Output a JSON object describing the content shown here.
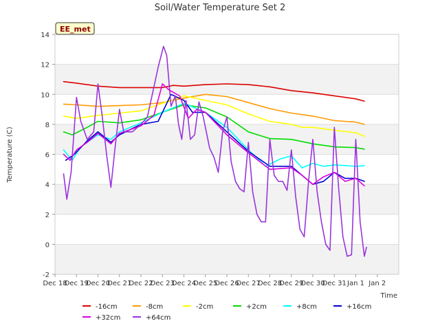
{
  "chart_data": {
    "type": "line",
    "title": "Soil/Water Temperature Set 2",
    "xlabel": "Time",
    "ylabel": "Temperature (C)",
    "badge": "EE_met",
    "xlim": [
      0,
      16
    ],
    "ylim": [
      -2,
      14
    ],
    "yticks": [
      -2,
      0,
      2,
      4,
      6,
      8,
      10,
      12,
      14
    ],
    "xticks": [
      {
        "pos": 0,
        "label": "Dec 18"
      },
      {
        "pos": 1,
        "label": "Dec 19"
      },
      {
        "pos": 2,
        "label": "Dec 20"
      },
      {
        "pos": 3,
        "label": "Dec 21"
      },
      {
        "pos": 4,
        "label": "Dec 22"
      },
      {
        "pos": 5,
        "label": "Dec 23"
      },
      {
        "pos": 6,
        "label": "Dec 24"
      },
      {
        "pos": 7,
        "label": "Dec 25"
      },
      {
        "pos": 8,
        "label": "Dec 26"
      },
      {
        "pos": 9,
        "label": "Dec 27"
      },
      {
        "pos": 10,
        "label": "Dec 28"
      },
      {
        "pos": 11,
        "label": "Dec 29"
      },
      {
        "pos": 12,
        "label": "Dec 30"
      },
      {
        "pos": 13,
        "label": "Dec 31"
      },
      {
        "pos": 14,
        "label": "Jan 1"
      },
      {
        "pos": 15,
        "label": "Jan 2"
      }
    ],
    "grid": true,
    "legend_position": "bottom",
    "series": [
      {
        "name": "-16cm",
        "color": "#dd0000",
        "points": [
          [
            0.4,
            10.85
          ],
          [
            1,
            10.75
          ],
          [
            2,
            10.55
          ],
          [
            3,
            10.45
          ],
          [
            4,
            10.45
          ],
          [
            5,
            10.45
          ],
          [
            5.5,
            10.6
          ],
          [
            6,
            10.55
          ],
          [
            7,
            10.65
          ],
          [
            8,
            10.7
          ],
          [
            9,
            10.65
          ],
          [
            10,
            10.5
          ],
          [
            11,
            10.25
          ],
          [
            12,
            10.1
          ],
          [
            13,
            9.9
          ],
          [
            14,
            9.7
          ],
          [
            14.4,
            9.55
          ]
        ]
      },
      {
        "name": "-8cm",
        "color": "#ff9900",
        "points": [
          [
            0.4,
            9.35
          ],
          [
            1,
            9.3
          ],
          [
            2,
            9.2
          ],
          [
            3,
            9.25
          ],
          [
            4,
            9.3
          ],
          [
            5,
            9.45
          ],
          [
            6,
            9.75
          ],
          [
            7,
            10.0
          ],
          [
            8,
            9.85
          ],
          [
            9,
            9.45
          ],
          [
            10,
            9.05
          ],
          [
            11,
            8.75
          ],
          [
            12,
            8.55
          ],
          [
            13,
            8.25
          ],
          [
            14,
            8.15
          ],
          [
            14.4,
            8.0
          ]
        ]
      },
      {
        "name": "-2cm",
        "color": "#ffff00",
        "points": [
          [
            0.4,
            8.55
          ],
          [
            1,
            8.4
          ],
          [
            2,
            8.6
          ],
          [
            3,
            8.75
          ],
          [
            4,
            8.9
          ],
          [
            5,
            9.4
          ],
          [
            6,
            9.9
          ],
          [
            7,
            9.6
          ],
          [
            8,
            9.3
          ],
          [
            9,
            8.7
          ],
          [
            10,
            8.2
          ],
          [
            11,
            8.0
          ],
          [
            11.5,
            7.8
          ],
          [
            12,
            7.8
          ],
          [
            13,
            7.6
          ],
          [
            14,
            7.45
          ],
          [
            14.4,
            7.2
          ]
        ]
      },
      {
        "name": "+2cm",
        "color": "#00dd00",
        "points": [
          [
            0.4,
            7.5
          ],
          [
            0.8,
            7.3
          ],
          [
            1.5,
            7.8
          ],
          [
            2,
            8.2
          ],
          [
            3,
            8.1
          ],
          [
            4,
            8.3
          ],
          [
            5,
            8.8
          ],
          [
            6,
            9.3
          ],
          [
            7,
            9.1
          ],
          [
            8,
            8.5
          ],
          [
            9,
            7.5
          ],
          [
            10,
            7.05
          ],
          [
            11,
            7.0
          ],
          [
            12,
            6.7
          ],
          [
            13,
            6.5
          ],
          [
            14,
            6.45
          ],
          [
            14.4,
            6.35
          ]
        ]
      },
      {
        "name": "+8cm",
        "color": "#00ffff",
        "points": [
          [
            0.4,
            6.3
          ],
          [
            0.8,
            5.6
          ],
          [
            1.2,
            6.5
          ],
          [
            2,
            7.3
          ],
          [
            2.6,
            7.0
          ],
          [
            3,
            7.5
          ],
          [
            4,
            8.1
          ],
          [
            5,
            8.8
          ],
          [
            6,
            9.4
          ],
          [
            7,
            8.8
          ],
          [
            8,
            7.8
          ],
          [
            9,
            6.3
          ],
          [
            9.8,
            5.2
          ],
          [
            10.5,
            5.7
          ],
          [
            11,
            5.9
          ],
          [
            11.5,
            5.1
          ],
          [
            12,
            5.4
          ],
          [
            12.5,
            5.2
          ],
          [
            13,
            5.3
          ],
          [
            14,
            5.2
          ],
          [
            14.4,
            5.25
          ]
        ]
      },
      {
        "name": "+16cm",
        "color": "#0000cc",
        "points": [
          [
            0.5,
            5.6
          ],
          [
            0.9,
            6.0
          ],
          [
            1.5,
            6.9
          ],
          [
            2,
            7.5
          ],
          [
            2.6,
            6.8
          ],
          [
            3,
            7.3
          ],
          [
            4,
            8.0
          ],
          [
            4.8,
            8.2
          ],
          [
            5.4,
            10.0
          ],
          [
            6,
            9.6
          ],
          [
            6.4,
            8.8
          ],
          [
            7,
            8.8
          ],
          [
            8,
            7.5
          ],
          [
            9,
            6.2
          ],
          [
            10,
            5.2
          ],
          [
            11,
            5.2
          ],
          [
            12,
            4.0
          ],
          [
            12.5,
            4.2
          ],
          [
            13,
            4.8
          ],
          [
            13.5,
            4.4
          ],
          [
            14,
            4.4
          ],
          [
            14.4,
            4.2
          ]
        ]
      },
      {
        "name": "+32cm",
        "color": "#dd00dd",
        "points": [
          [
            0.4,
            6.0
          ],
          [
            0.7,
            5.6
          ],
          [
            1,
            6.3
          ],
          [
            1.5,
            6.8
          ],
          [
            2,
            7.4
          ],
          [
            2.6,
            6.7
          ],
          [
            3,
            7.4
          ],
          [
            4,
            7.9
          ],
          [
            4.6,
            8.6
          ],
          [
            5,
            10.7
          ],
          [
            5.3,
            10.3
          ],
          [
            5.8,
            9.9
          ],
          [
            6.2,
            8.4
          ],
          [
            6.6,
            9.0
          ],
          [
            7,
            8.8
          ],
          [
            8,
            7.3
          ],
          [
            9,
            6.1
          ],
          [
            10,
            5.0
          ],
          [
            11,
            5.1
          ],
          [
            11.5,
            4.6
          ],
          [
            12,
            4.0
          ],
          [
            12.5,
            4.5
          ],
          [
            13,
            4.8
          ],
          [
            13.5,
            4.2
          ],
          [
            14,
            4.4
          ],
          [
            14.4,
            3.9
          ]
        ]
      },
      {
        "name": "+64cm",
        "color": "#9933dd",
        "points": [
          [
            0.4,
            4.7
          ],
          [
            0.55,
            3.0
          ],
          [
            0.75,
            4.8
          ],
          [
            1,
            9.8
          ],
          [
            1.2,
            8.2
          ],
          [
            1.5,
            7.0
          ],
          [
            1.8,
            7.5
          ],
          [
            2,
            10.7
          ],
          [
            2.2,
            8.5
          ],
          [
            2.4,
            6.0
          ],
          [
            2.6,
            3.8
          ],
          [
            2.8,
            6.5
          ],
          [
            3,
            9.0
          ],
          [
            3.2,
            7.5
          ],
          [
            3.6,
            7.5
          ],
          [
            4,
            8.0
          ],
          [
            4.3,
            8.5
          ],
          [
            4.5,
            9.8
          ],
          [
            4.8,
            11.8
          ],
          [
            5.05,
            13.2
          ],
          [
            5.2,
            12.6
          ],
          [
            5.4,
            9.2
          ],
          [
            5.6,
            9.9
          ],
          [
            5.75,
            8.0
          ],
          [
            5.9,
            7.0
          ],
          [
            6.1,
            9.6
          ],
          [
            6.3,
            7.0
          ],
          [
            6.5,
            7.3
          ],
          [
            6.7,
            9.5
          ],
          [
            6.9,
            8.5
          ],
          [
            7.2,
            6.4
          ],
          [
            7.4,
            5.8
          ],
          [
            7.6,
            4.8
          ],
          [
            7.8,
            7.5
          ],
          [
            8,
            8.5
          ],
          [
            8.2,
            5.5
          ],
          [
            8.4,
            4.2
          ],
          [
            8.6,
            3.7
          ],
          [
            8.8,
            3.5
          ],
          [
            9,
            6.8
          ],
          [
            9.2,
            3.5
          ],
          [
            9.4,
            2.0
          ],
          [
            9.6,
            1.5
          ],
          [
            9.8,
            1.5
          ],
          [
            10,
            7.0
          ],
          [
            10.2,
            4.6
          ],
          [
            10.4,
            4.2
          ],
          [
            10.6,
            4.2
          ],
          [
            10.8,
            3.6
          ],
          [
            11,
            6.3
          ],
          [
            11.2,
            3.2
          ],
          [
            11.4,
            1.0
          ],
          [
            11.6,
            0.5
          ],
          [
            11.8,
            4.2
          ],
          [
            12,
            7.0
          ],
          [
            12.2,
            3.5
          ],
          [
            12.4,
            1.5
          ],
          [
            12.6,
            0.0
          ],
          [
            12.8,
            -0.4
          ],
          [
            13,
            7.8
          ],
          [
            13.2,
            3.8
          ],
          [
            13.4,
            0.5
          ],
          [
            13.6,
            -0.8
          ],
          [
            13.8,
            -0.7
          ],
          [
            14,
            7.0
          ],
          [
            14.2,
            1.5
          ],
          [
            14.4,
            -0.8
          ],
          [
            14.5,
            -0.2
          ]
        ]
      }
    ]
  }
}
